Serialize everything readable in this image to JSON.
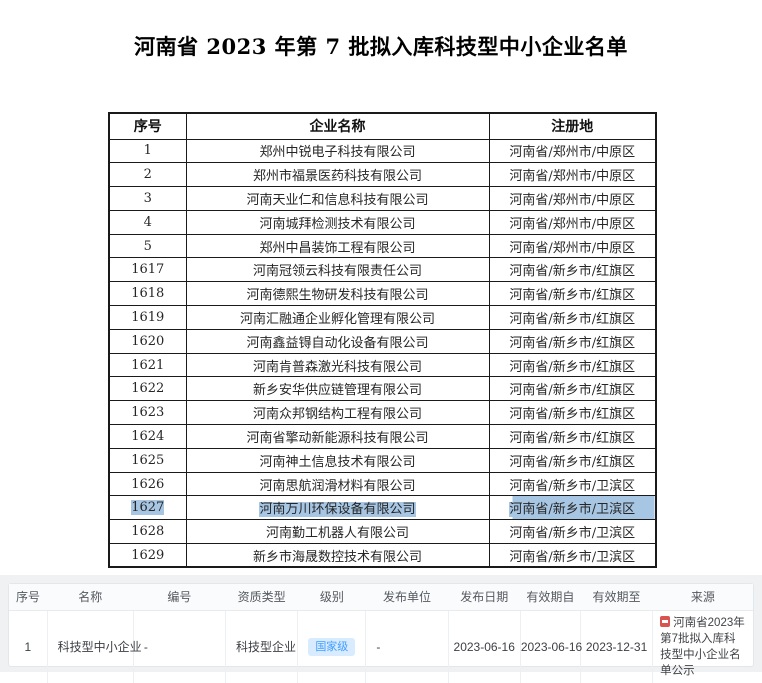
{
  "colors": {
    "selection": "#a7c6e3",
    "badge_bg": "#d9ecff",
    "badge_text": "#409eff",
    "panel_bg": "#f0f1f3",
    "doc_border": "#1a1a1a",
    "icon_red": "#d9534f"
  },
  "doc": {
    "title": "河南省 2023 年第 7 批拟入库科技型中小企业名单",
    "table": {
      "headers": {
        "no": "序号",
        "name": "企业名称",
        "location": "注册地"
      },
      "selected_no": "1627",
      "rows": [
        {
          "no": "1",
          "name": "郑州中锐电子科技有限公司",
          "location": "河南省/郑州市/中原区"
        },
        {
          "no": "2",
          "name": "郑州市福景医药科技有限公司",
          "location": "河南省/郑州市/中原区"
        },
        {
          "no": "3",
          "name": "河南天业仁和信息科技有限公司",
          "location": "河南省/郑州市/中原区"
        },
        {
          "no": "4",
          "name": "河南城拜检测技术有限公司",
          "location": "河南省/郑州市/中原区"
        },
        {
          "no": "5",
          "name": "郑州中昌装饰工程有限公司",
          "location": "河南省/郑州市/中原区"
        },
        {
          "no": "1617",
          "name": "河南冠领云科技有限责任公司",
          "location": "河南省/新乡市/红旗区"
        },
        {
          "no": "1618",
          "name": "河南德熙生物研发科技有限公司",
          "location": "河南省/新乡市/红旗区"
        },
        {
          "no": "1619",
          "name": "河南汇融通企业孵化管理有限公司",
          "location": "河南省/新乡市/红旗区"
        },
        {
          "no": "1620",
          "name": "河南鑫益锝自动化设备有限公司",
          "location": "河南省/新乡市/红旗区"
        },
        {
          "no": "1621",
          "name": "河南肯普森激光科技有限公司",
          "location": "河南省/新乡市/红旗区"
        },
        {
          "no": "1622",
          "name": "新乡安华供应链管理有限公司",
          "location": "河南省/新乡市/红旗区"
        },
        {
          "no": "1623",
          "name": "河南众邦钢结构工程有限公司",
          "location": "河南省/新乡市/红旗区"
        },
        {
          "no": "1624",
          "name": "河南省擎动新能源科技有限公司",
          "location": "河南省/新乡市/红旗区"
        },
        {
          "no": "1625",
          "name": "河南神土信息技术有限公司",
          "location": "河南省/新乡市/红旗区"
        },
        {
          "no": "1626",
          "name": "河南思航润滑材料有限公司",
          "location": "河南省/新乡市/卫滨区"
        },
        {
          "no": "1627",
          "name": "河南万川环保设备有限公司",
          "location": "河南省/新乡市/卫滨区",
          "selected": true
        },
        {
          "no": "1628",
          "name": "河南勤工机器人有限公司",
          "location": "河南省/新乡市/卫滨区"
        },
        {
          "no": "1629",
          "name": "新乡市海晟数控技术有限公司",
          "location": "河南省/新乡市/卫滨区"
        }
      ]
    }
  },
  "detail": {
    "headers": [
      "序号",
      "名称",
      "编号",
      "资质类型",
      "级别",
      "发布单位",
      "发布日期",
      "有效期自",
      "有效期至",
      "来源"
    ],
    "row": {
      "no": "1",
      "name": "科技型中小企业",
      "code": "-",
      "qualification_type": "科技型企业",
      "level": "国家级",
      "publisher": "-",
      "publish_date": "2023-06-16",
      "valid_from": "2023-06-16",
      "valid_to": "2023-12-31",
      "source": "河南省2023年第7批拟入库科技型中小企业名单公示"
    },
    "icons": {
      "source_icon": "document-icon"
    }
  }
}
